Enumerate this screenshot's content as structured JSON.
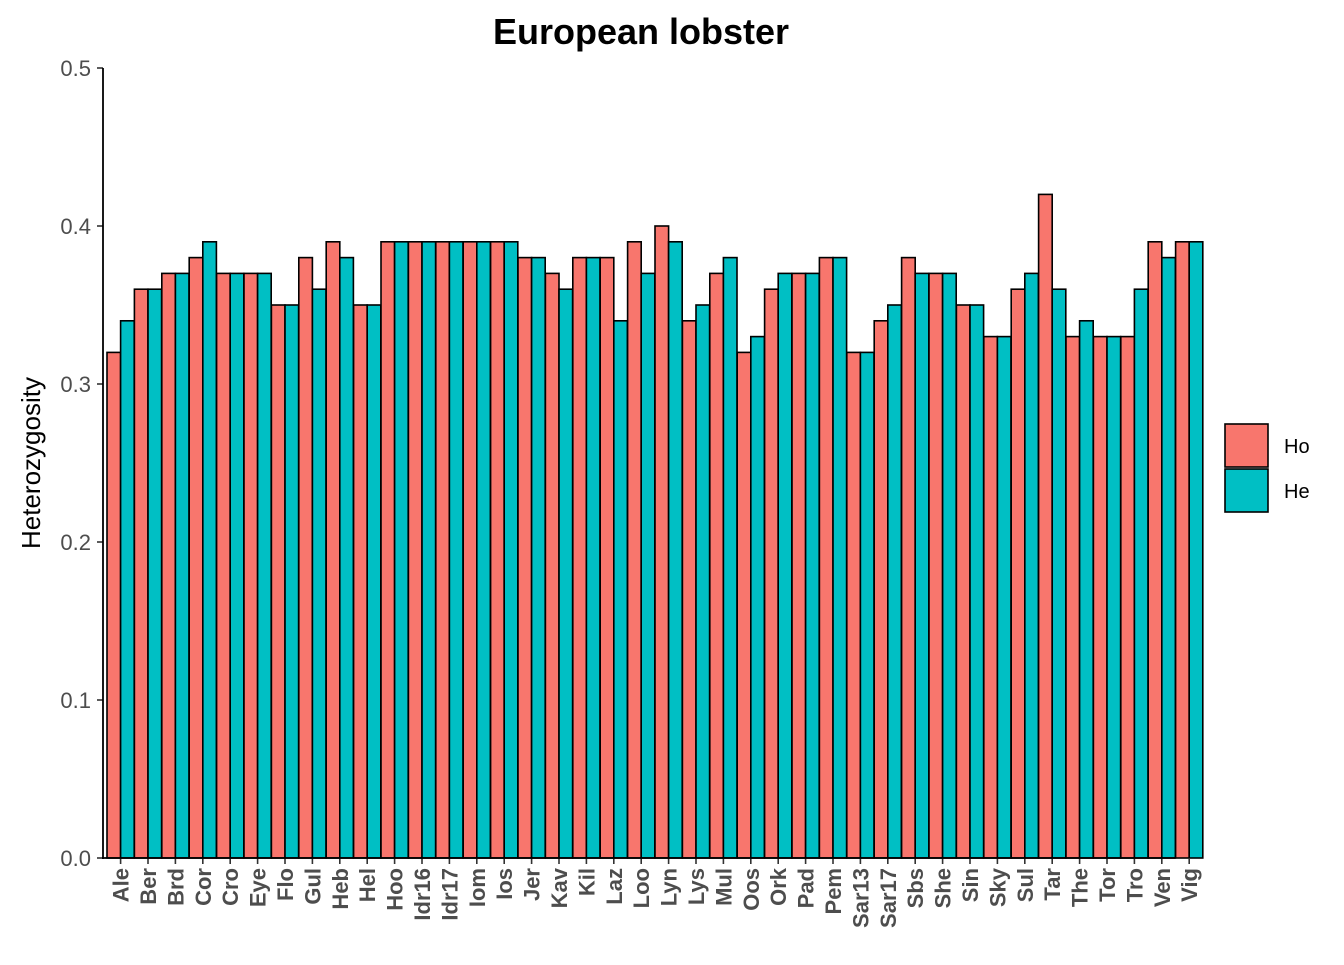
{
  "chart_data": {
    "type": "bar",
    "title": "European lobster",
    "xlabel": "",
    "ylabel": "Heterozygosity",
    "ylim": [
      0,
      0.5
    ],
    "yticks": [
      "0.0",
      "0.1",
      "0.2",
      "0.3",
      "0.4",
      "0.5"
    ],
    "grid": false,
    "legend_position": "right",
    "categories": [
      "Ale",
      "Ber",
      "Brd",
      "Cor",
      "Cro",
      "Eye",
      "Flo",
      "Gul",
      "Heb",
      "Hel",
      "Hoo",
      "Idr16",
      "Idr17",
      "Iom",
      "Ios",
      "Jer",
      "Kav",
      "Kil",
      "Laz",
      "Loo",
      "Lyn",
      "Lys",
      "Mul",
      "Oos",
      "Ork",
      "Pad",
      "Pem",
      "Sar13",
      "Sar17",
      "Sbs",
      "She",
      "Sin",
      "Sky",
      "Sul",
      "Tar",
      "The",
      "Tor",
      "Tro",
      "Ven",
      "Vig"
    ],
    "series": [
      {
        "name": "Ho",
        "color": "#f8766d",
        "values": [
          0.32,
          0.36,
          0.37,
          0.38,
          0.37,
          0.37,
          0.35,
          0.38,
          0.39,
          0.35,
          0.39,
          0.39,
          0.39,
          0.39,
          0.39,
          0.38,
          0.37,
          0.38,
          0.38,
          0.39,
          0.4,
          0.34,
          0.37,
          0.32,
          0.36,
          0.37,
          0.38,
          0.32,
          0.34,
          0.38,
          0.37,
          0.35,
          0.33,
          0.36,
          0.42,
          0.33,
          0.33,
          0.33,
          0.39,
          0.39
        ]
      },
      {
        "name": "He",
        "color": "#00bfc4",
        "values": [
          0.34,
          0.36,
          0.37,
          0.39,
          0.37,
          0.37,
          0.35,
          0.36,
          0.38,
          0.35,
          0.39,
          0.39,
          0.39,
          0.39,
          0.39,
          0.38,
          0.36,
          0.38,
          0.34,
          0.37,
          0.39,
          0.35,
          0.38,
          0.33,
          0.37,
          0.37,
          0.38,
          0.32,
          0.35,
          0.37,
          0.37,
          0.35,
          0.33,
          0.37,
          0.36,
          0.34,
          0.33,
          0.36,
          0.38,
          0.39
        ]
      }
    ]
  }
}
